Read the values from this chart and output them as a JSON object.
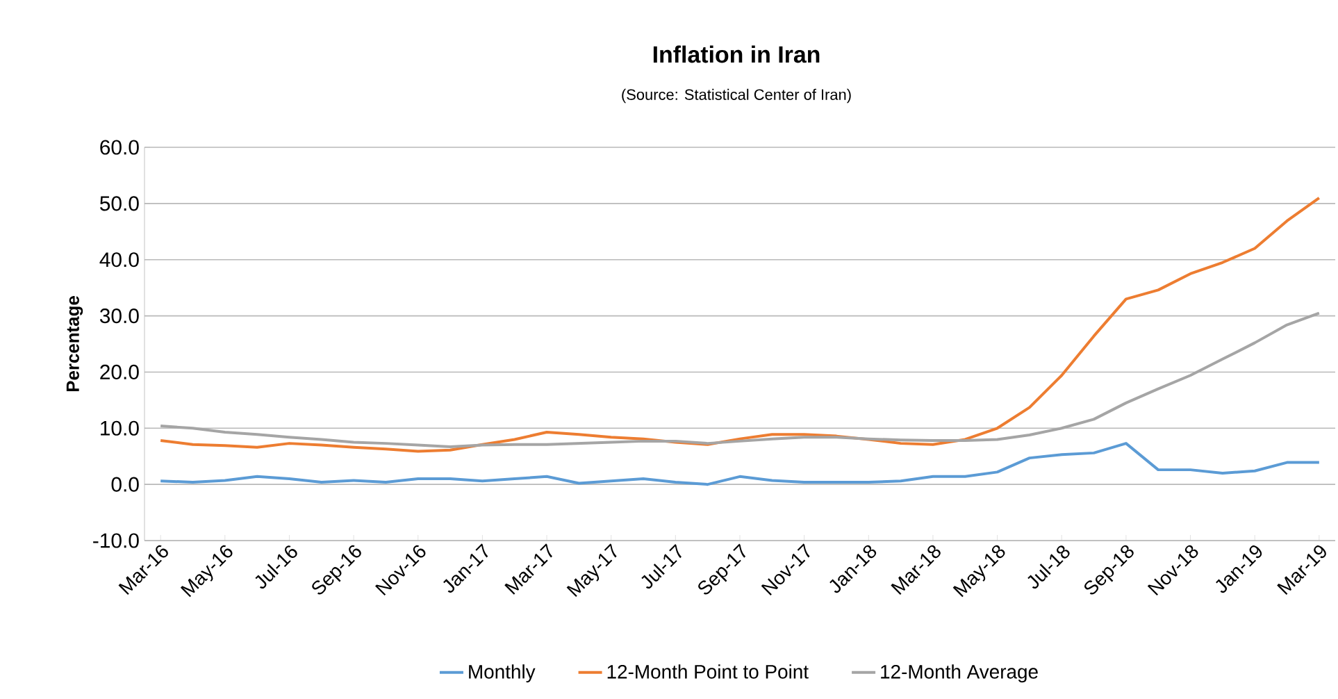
{
  "chart_data": {
    "type": "line",
    "title": "Inflation in Iran",
    "subtitle": "(Source: Statistical Center of Iran)",
    "ylabel": "Percentage",
    "categories": [
      "Mar-16",
      null,
      "May-16",
      null,
      "Jul-16",
      null,
      "Sep-16",
      null,
      "Nov-16",
      null,
      "Jan-17",
      null,
      "Mar-17",
      null,
      "May-17",
      null,
      "Jul-17",
      null,
      "Sep-17",
      null,
      "Nov-17",
      null,
      "Jan-18",
      null,
      "Mar-18",
      null,
      "May-18",
      null,
      "Jul-18",
      null,
      "Sep-18",
      null,
      "Nov-18",
      null,
      "Jan-19",
      null,
      "Mar-19"
    ],
    "series": [
      {
        "name": "Monthly",
        "color": "#5b9bd5",
        "values": [
          0.6,
          0.4,
          0.7,
          1.4,
          1.0,
          0.4,
          0.7,
          0.4,
          1.0,
          1.0,
          0.6,
          1.0,
          1.4,
          0.2,
          0.6,
          1.0,
          0.4,
          0.0,
          1.4,
          0.7,
          0.4,
          0.4,
          0.4,
          0.6,
          1.4,
          1.4,
          2.2,
          4.7,
          5.3,
          5.6,
          7.3,
          2.6,
          2.6,
          2.0,
          2.4,
          3.9,
          3.9
        ]
      },
      {
        "name": "12-Month Point to Point",
        "color": "#ed7d31",
        "values": [
          7.8,
          7.1,
          6.9,
          6.6,
          7.3,
          7.0,
          6.6,
          6.3,
          5.9,
          6.1,
          7.1,
          8.0,
          9.3,
          8.9,
          8.4,
          8.1,
          7.5,
          7.1,
          8.1,
          8.9,
          8.9,
          8.6,
          8.0,
          7.3,
          7.1,
          8.0,
          10.0,
          13.7,
          19.4,
          26.4,
          33.0,
          34.6,
          37.5,
          39.5,
          42.0,
          46.9,
          51.0
        ]
      },
      {
        "name": "12-Month Average",
        "color": "#a5a5a5",
        "values": [
          10.4,
          10.0,
          9.3,
          8.9,
          8.4,
          8.0,
          7.5,
          7.3,
          7.0,
          6.7,
          7.0,
          7.1,
          7.1,
          7.3,
          7.5,
          7.7,
          7.7,
          7.3,
          7.7,
          8.1,
          8.4,
          8.4,
          8.1,
          7.9,
          7.8,
          7.8,
          8.0,
          8.8,
          10.0,
          11.6,
          14.5,
          17.0,
          19.4,
          22.3,
          25.2,
          28.4,
          30.5
        ]
      }
    ],
    "ylim": [
      -10,
      60
    ],
    "yticks": [
      {
        "value": -10,
        "label": "-10.0"
      },
      {
        "value": 0,
        "label": "0.0"
      },
      {
        "value": 10,
        "label": "10.0"
      },
      {
        "value": 20,
        "label": "20.0"
      },
      {
        "value": 30,
        "label": "30.0"
      },
      {
        "value": 40,
        "label": "40.0"
      },
      {
        "value": 50,
        "label": "50.0"
      },
      {
        "value": 60,
        "label": "60.0"
      }
    ],
    "grid": "y",
    "legend": "bottom",
    "marker": "none",
    "line_style": "solid"
  }
}
